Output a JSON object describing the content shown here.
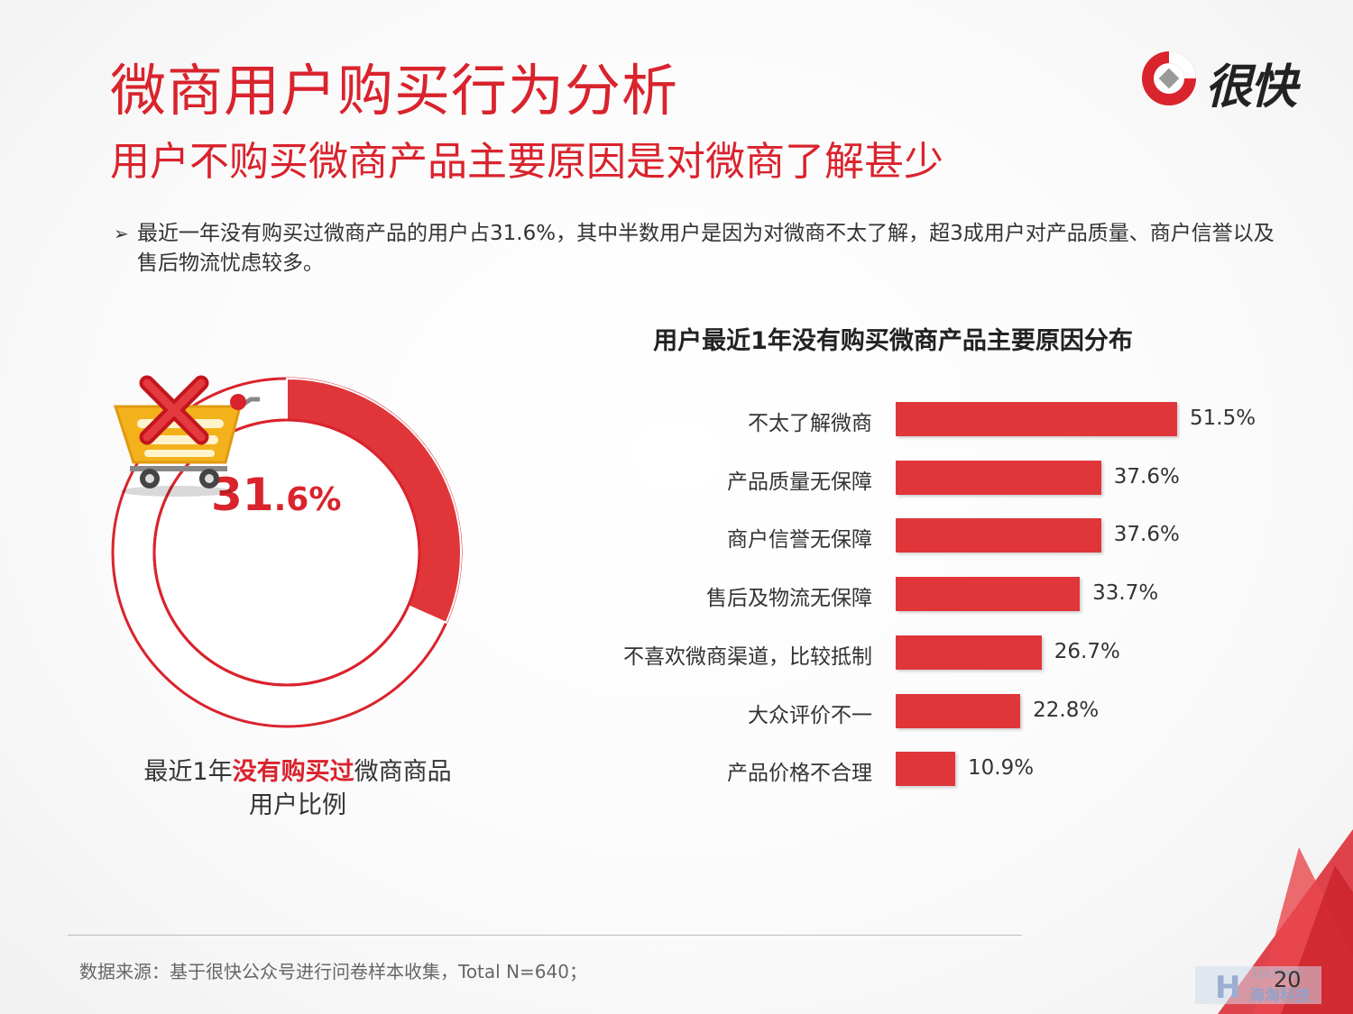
{
  "header": {
    "title": "微商用户购买行为分析",
    "subtitle": "用户不购买微商产品主要原因是对微商了解甚少"
  },
  "logo": {
    "text": "很快",
    "icon": "logo-ring-icon"
  },
  "summary": {
    "bullet_icon": "arrow-bullet-icon",
    "text": "最近一年没有购买过微商产品的用户占31.6%，其中半数用户是因为对微商不太了解，超3成用户对产品质量、商户信誉以及售后物流忧虑较多。"
  },
  "donut": {
    "value_int": "31",
    "value_dec": ".6%",
    "percent": 31.6,
    "caption_pre": "最近1年",
    "caption_hl": "没有购买过",
    "caption_post": "微商商品",
    "caption_line2": "用户比例",
    "icon": "shopping-cart-cross-icon"
  },
  "chart_data": {
    "type": "bar",
    "orientation": "horizontal",
    "title": "用户最近1年没有购买微商产品主要原因分布",
    "categories": [
      "不太了解微商",
      "产品质量无保障",
      "商户信誉无保障",
      "售后及物流无保障",
      "不喜欢微商渠道，比较抵制",
      "大众评价不一",
      "产品价格不合理"
    ],
    "values": [
      51.5,
      37.6,
      37.6,
      33.7,
      26.7,
      22.8,
      10.9
    ],
    "labels": [
      "51.5%",
      "37.6%",
      "37.6%",
      "33.7%",
      "26.7%",
      "22.8%",
      "10.9%"
    ],
    "unit": "%",
    "xlim": [
      0,
      100
    ],
    "color": "#e0363a"
  },
  "footer": {
    "source": "数据来源：基于很快公众号进行问卷样本收集，Total N=640；",
    "page": "20",
    "watermark_top": "HAITAO",
    "watermark_bottom": "海淘科技"
  },
  "colors": {
    "accent": "#d9232d",
    "bar": "#e0363a",
    "cart": "#f3b21c"
  }
}
